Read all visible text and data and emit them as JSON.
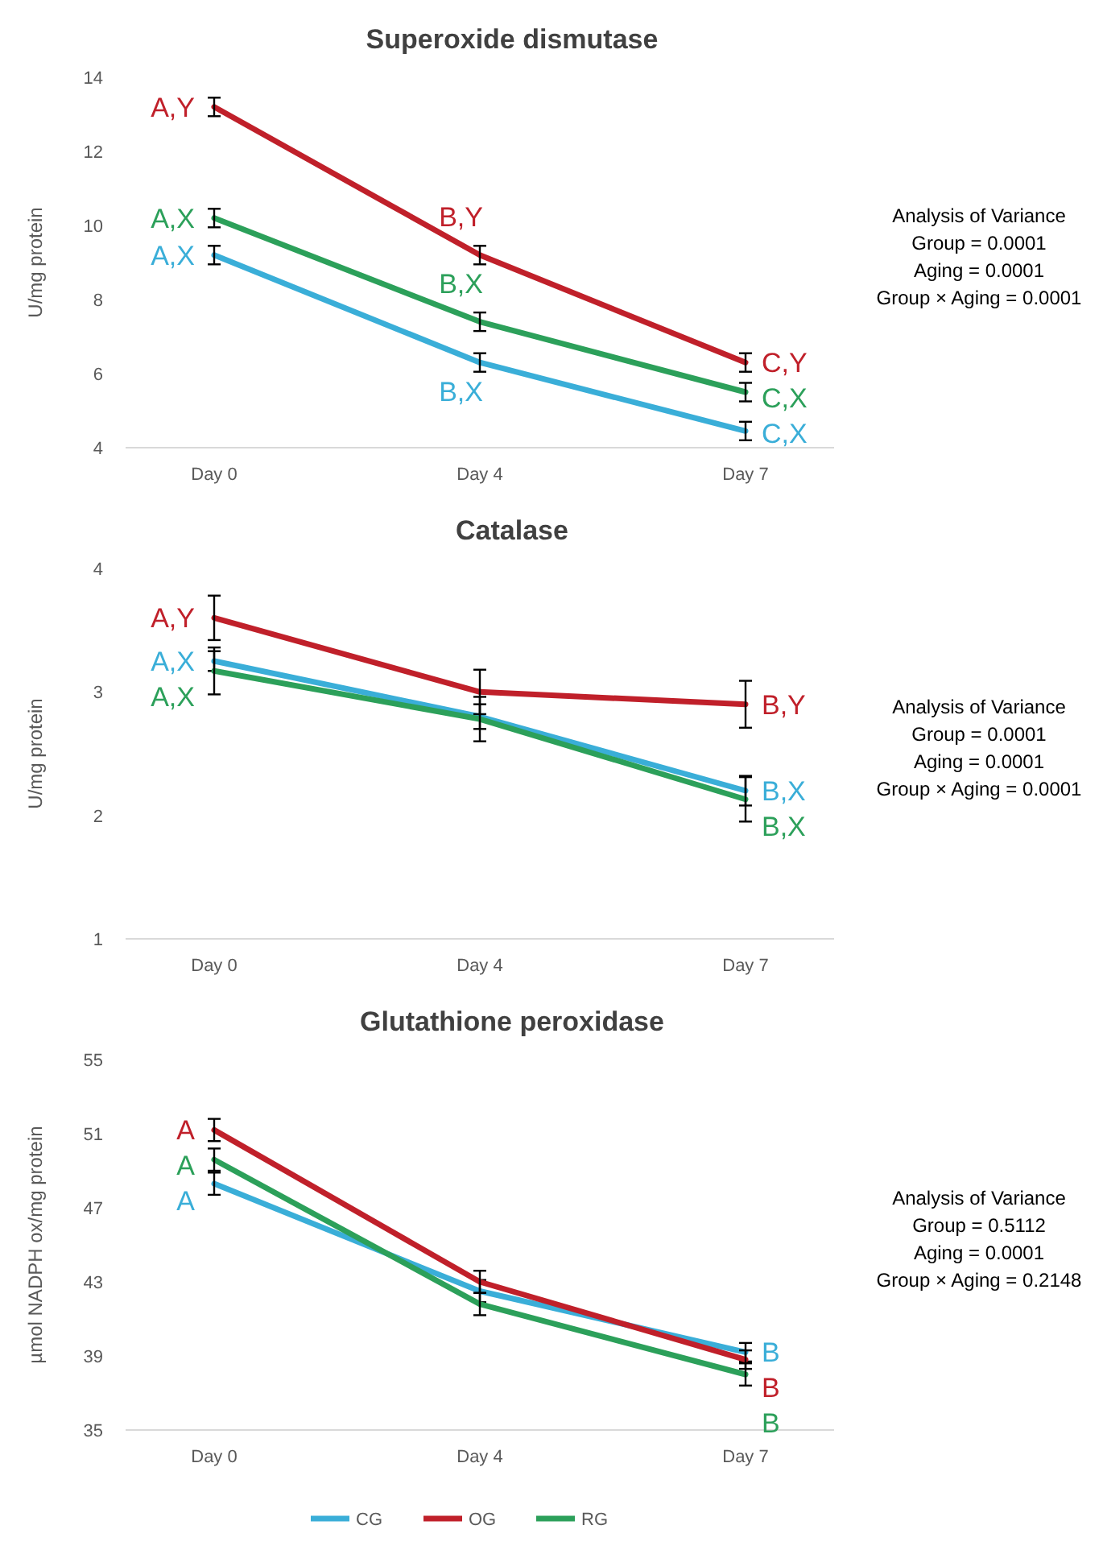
{
  "chart_data": [
    {
      "type": "line",
      "title": "Superoxide dismutase",
      "ylabel": "U/mg protein",
      "categories": [
        "Day 0",
        "Day 4",
        "Day 7"
      ],
      "ylim": [
        4,
        14
      ],
      "yticks": [
        4,
        6,
        8,
        10,
        12,
        14
      ],
      "grid": false,
      "marker": "none",
      "line_style": "solid",
      "legend": false,
      "series": [
        {
          "color": "#3aaed8",
          "values": [
            9.2,
            6.3,
            4.45
          ],
          "errors": [
            0.25,
            0.25,
            0.25
          ],
          "value_labels": [
            "A,X",
            "B,X",
            "C,X"
          ]
        },
        {
          "color": "#c0202a",
          "values": [
            13.2,
            9.2,
            6.3
          ],
          "errors": [
            0.25,
            0.25,
            0.25
          ],
          "value_labels": [
            "A,Y",
            "B,Y",
            "C,Y"
          ]
        },
        {
          "color": "#2ca05a",
          "values": [
            10.2,
            7.4,
            5.5
          ],
          "errors": [
            0.25,
            0.25,
            0.25
          ],
          "value_labels": [
            "A,X",
            "B,X",
            "C,X"
          ]
        }
      ],
      "annotations": [
        "Analysis of Variance",
        "Group = 0.0001",
        "Aging = 0.0001",
        "Group × Aging = 0.0001"
      ]
    },
    {
      "type": "line",
      "title": "Catalase",
      "ylabel": "U/mg protein",
      "categories": [
        "Day 0",
        "Day 4",
        "Day 7"
      ],
      "ylim": [
        1,
        4
      ],
      "yticks": [
        1,
        2,
        3,
        4
      ],
      "grid": false,
      "marker": "none",
      "line_style": "solid",
      "legend": false,
      "series": [
        {
          "color": "#3aaed8",
          "values": [
            3.25,
            2.8,
            2.2
          ],
          "errors": [
            0.08,
            0.1,
            0.12
          ],
          "value_labels": [
            "A,X",
            null,
            "B,X"
          ]
        },
        {
          "color": "#c0202a",
          "values": [
            3.6,
            3.0,
            2.9
          ],
          "errors": [
            0.18,
            0.18,
            0.19
          ],
          "value_labels": [
            "A,Y",
            null,
            "B,Y"
          ]
        },
        {
          "color": "#2ca05a",
          "values": [
            3.17,
            2.78,
            2.13
          ],
          "errors": [
            0.19,
            0.18,
            0.18
          ],
          "value_labels": [
            "A,X",
            null,
            "B,X"
          ]
        }
      ],
      "annotations": [
        "Analysis of Variance",
        "Group = 0.0001",
        "Aging = 0.0001",
        "Group × Aging = 0.0001"
      ]
    },
    {
      "type": "line",
      "title": "Glutathione peroxidase",
      "ylabel": "µmol NADPH ox/mg protein",
      "categories": [
        "Day 0",
        "Day 4",
        "Day 7"
      ],
      "ylim": [
        35,
        55
      ],
      "yticks": [
        35,
        39,
        43,
        47,
        51,
        55
      ],
      "grid": false,
      "marker": "none",
      "line_style": "solid",
      "legend": "bottom",
      "series": [
        {
          "name": "CG",
          "color": "#3aaed8",
          "values": [
            48.3,
            42.5,
            39.2
          ],
          "errors": [
            0.6,
            0.6,
            0.5
          ],
          "value_labels": [
            "A",
            null,
            "B"
          ]
        },
        {
          "name": "OG",
          "color": "#c0202a",
          "values": [
            51.2,
            43.0,
            38.8
          ],
          "errors": [
            0.6,
            0.6,
            0.5
          ],
          "value_labels": [
            "A",
            null,
            "B"
          ]
        },
        {
          "name": "RG",
          "color": "#2ca05a",
          "values": [
            49.6,
            41.8,
            38.0
          ],
          "errors": [
            0.6,
            0.6,
            0.6
          ],
          "value_labels": [
            "A",
            null,
            "B"
          ]
        }
      ],
      "annotations": [
        "Analysis of Variance",
        "Group = 0.5112",
        "Aging = 0.0001",
        "Group × Aging = 0.2148"
      ]
    }
  ]
}
